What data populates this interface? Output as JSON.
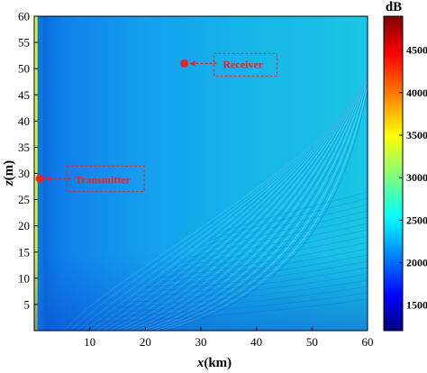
{
  "chart_data": {
    "type": "heatmap",
    "title": "",
    "xlabel_var": "x",
    "xlabel_unit": "(km)",
    "ylabel_var": "z",
    "ylabel_unit": "(m)",
    "xlim": [
      0,
      60
    ],
    "ylim": [
      0,
      60
    ],
    "xticks": [
      "10",
      "20",
      "30",
      "40",
      "50",
      "60"
    ],
    "yticks": [
      "5",
      "10",
      "15",
      "20",
      "25",
      "30",
      "35",
      "40",
      "45",
      "50",
      "55",
      "60"
    ],
    "colorbar": {
      "label": "dB",
      "range": [
        1200,
        4900
      ],
      "ticks": [
        "1500",
        "2000",
        "2500",
        "3000",
        "3500",
        "4000",
        "4500"
      ],
      "colormap": "jet"
    },
    "annotations": [
      {
        "name": "transmitter",
        "text": "Transmitter",
        "x": 0.5,
        "z": 29,
        "color": "#e8232a"
      },
      {
        "name": "receiver",
        "text": "Receiver",
        "x": 27,
        "z": 51,
        "color": "#e8232a"
      }
    ]
  }
}
